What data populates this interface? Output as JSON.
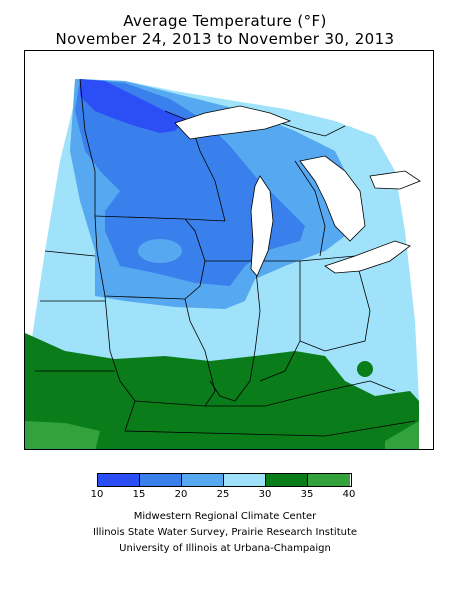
{
  "title": {
    "line1": "Average Temperature (°F)",
    "line2": "November 24, 2013 to November 30, 2013"
  },
  "map": {
    "bands_colors": {
      "10-15": "#2b4ef5",
      "15-20": "#3a80ec",
      "20-25": "#56a8f0",
      "25-30": "#9fe2fa",
      "30-35": "#0a7d1a",
      "35-40": "#33a23d"
    },
    "outline_color": "#000000",
    "lake_color": "#ffffff"
  },
  "legend": {
    "colors": [
      "#2b4ef5",
      "#3a80ec",
      "#56a8f0",
      "#9fe2fa",
      "#0a7d1a",
      "#33a23d"
    ],
    "ticks": [
      "10",
      "15",
      "20",
      "25",
      "30",
      "35",
      "40"
    ]
  },
  "credits": {
    "line1": "Midwestern Regional Climate Center",
    "line2": "Illinois State Water Survey, Prairie Research Institute",
    "line3": "University of Illinois at Urbana-Champaign"
  }
}
